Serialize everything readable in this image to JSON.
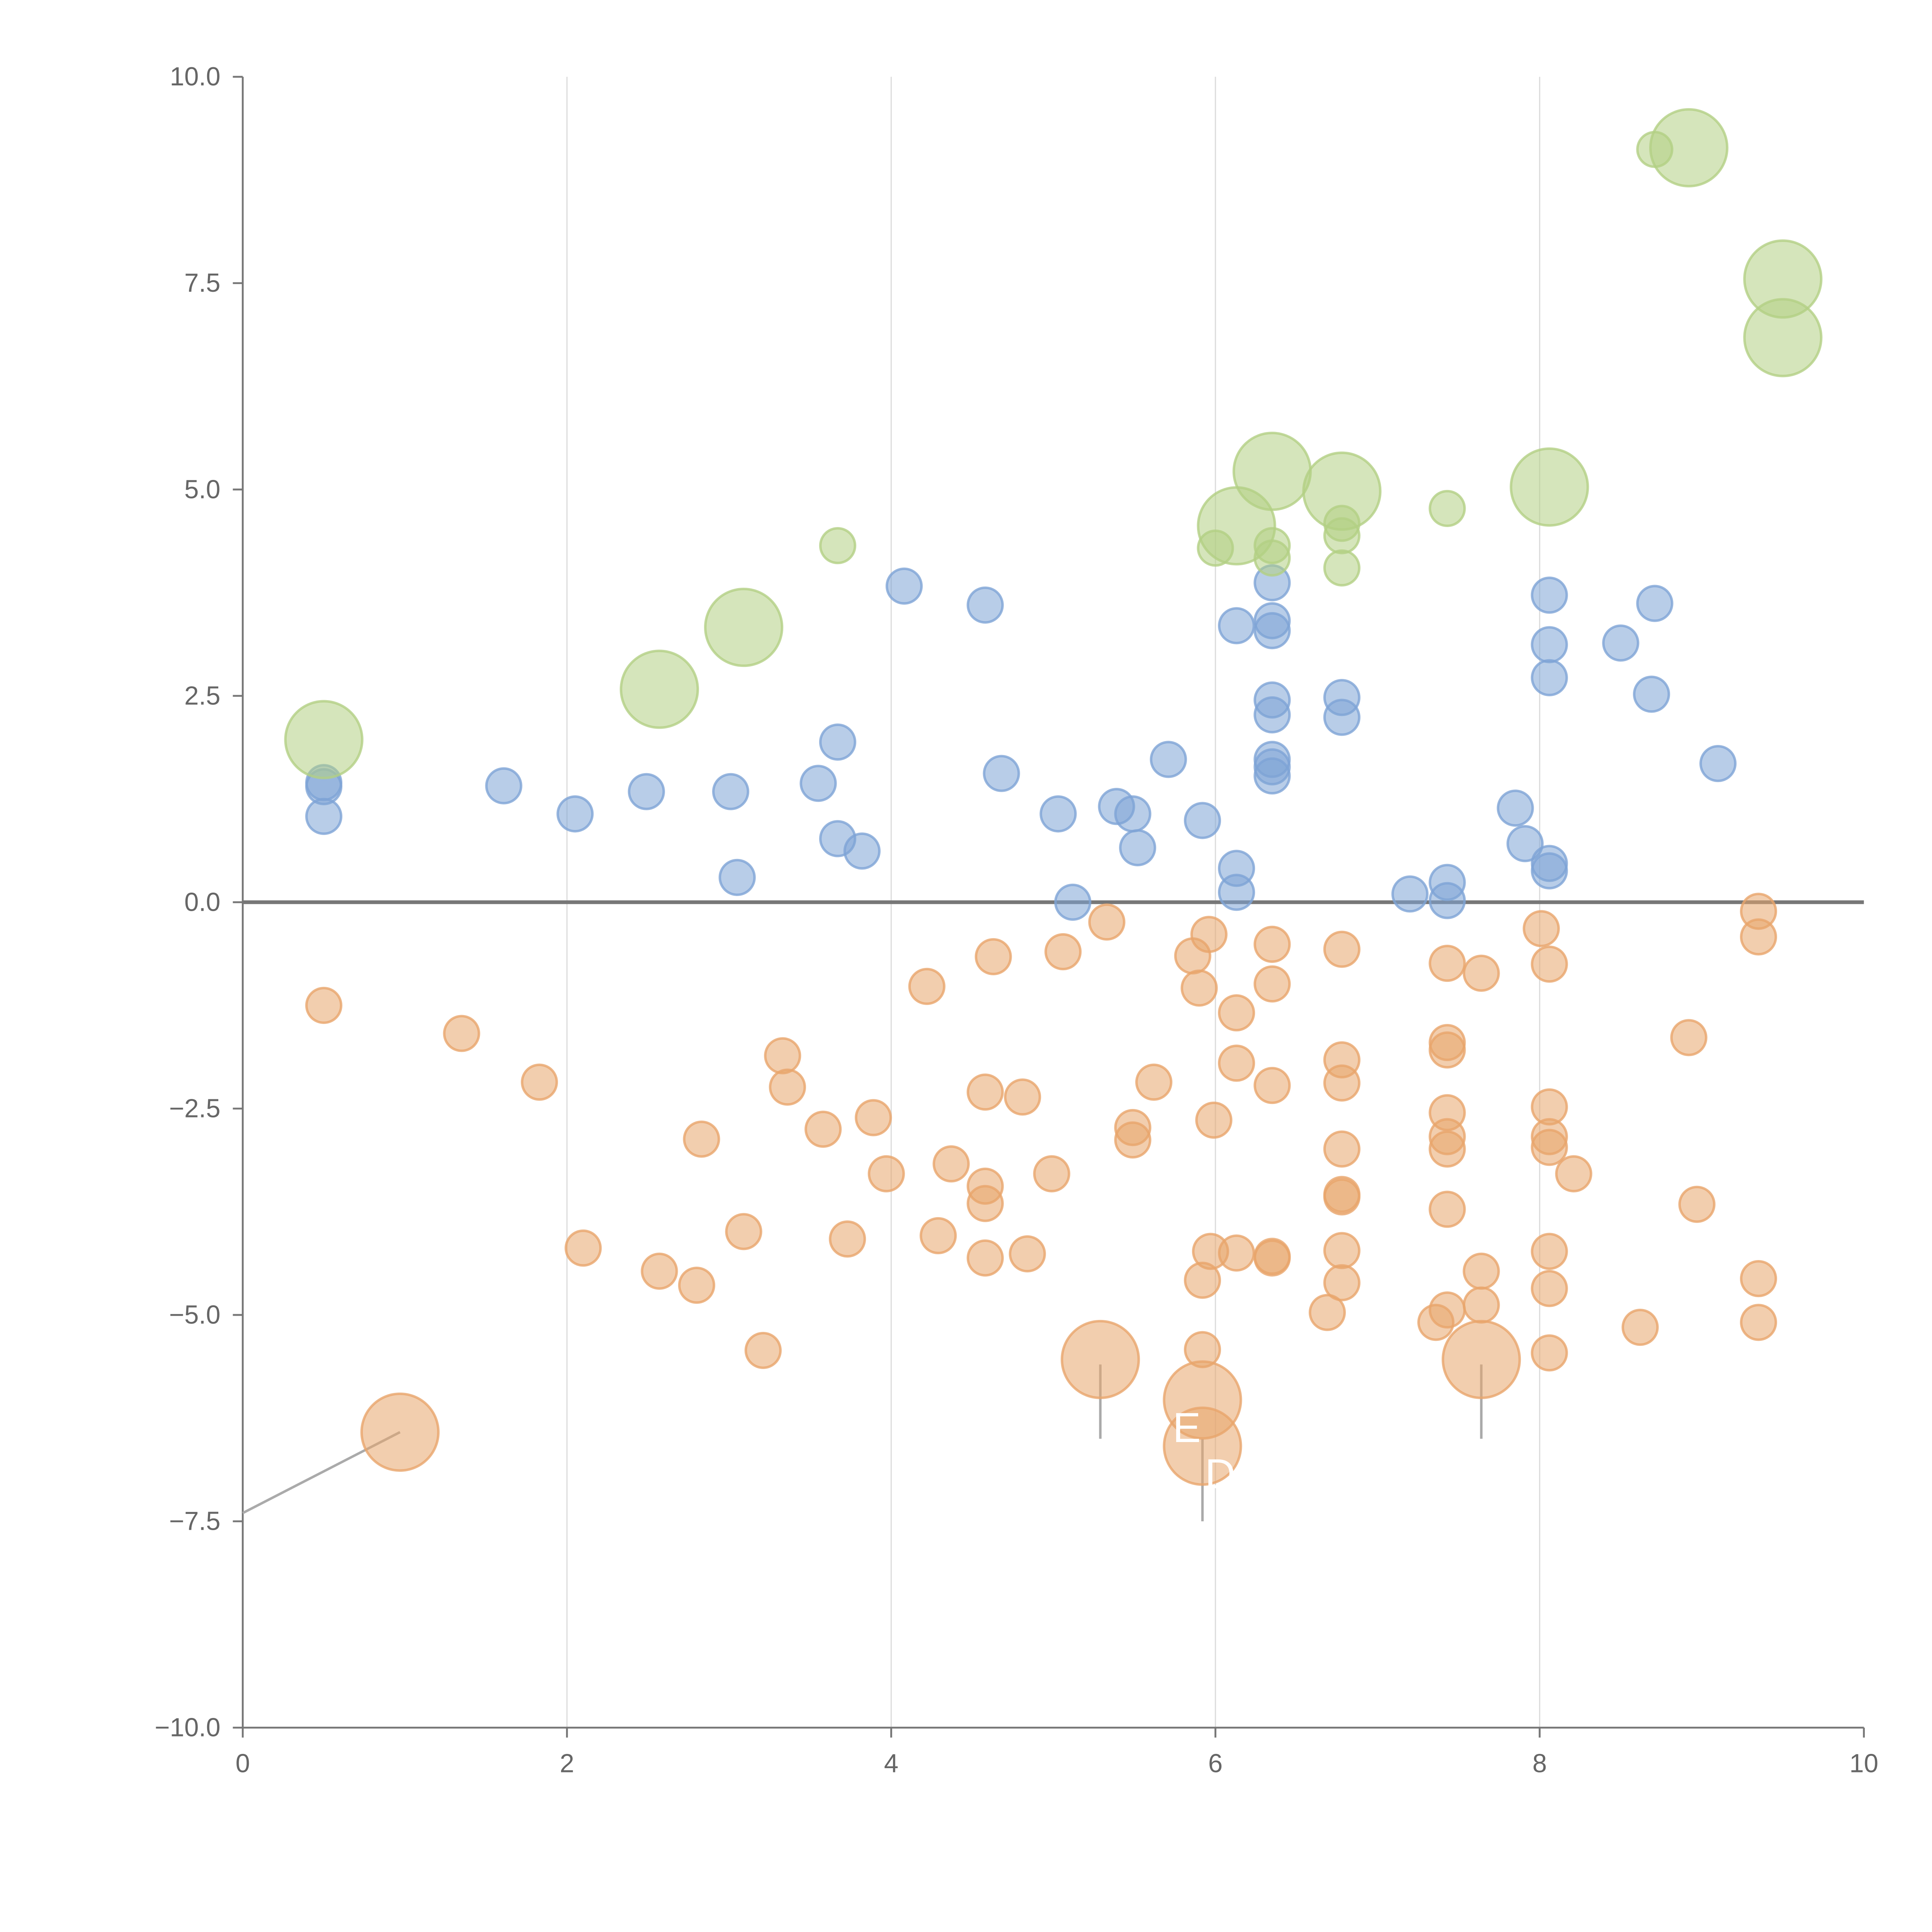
{
  "chart_data": {
    "type": "scatter",
    "title": "",
    "xlabel": "",
    "ylabel": "",
    "xlim": [
      0,
      10
    ],
    "ylim": [
      -10,
      10
    ],
    "x_ticks": [
      "0",
      "2",
      "4",
      "6",
      "8",
      "10"
    ],
    "y_ticks": [
      "10.0",
      "7.5",
      "5.0",
      "2.5",
      "0.0",
      "−2.5",
      "−5.0",
      "−7.5",
      "−10.0"
    ],
    "grid": "vertical",
    "reference_line_y": 0,
    "size_note": "points are [x, y, size]; size 1 = small, 2 = large",
    "series": [
      {
        "name": "blue",
        "color": "#7ea4d6",
        "points": [
          [
            0.5,
            1.4,
            1
          ],
          [
            0.5,
            1.45,
            1
          ],
          [
            0.5,
            1.04,
            1
          ],
          [
            1.61,
            1.41,
            1
          ],
          [
            2.05,
            1.07,
            1
          ],
          [
            2.49,
            1.34,
            1
          ],
          [
            3.01,
            1.34,
            1
          ],
          [
            3.05,
            0.3,
            1
          ],
          [
            3.55,
            1.44,
            1
          ],
          [
            3.67,
            1.94,
            1
          ],
          [
            3.67,
            0.77,
            1
          ],
          [
            3.82,
            0.62,
            1
          ],
          [
            4.08,
            3.83,
            1
          ],
          [
            4.58,
            3.6,
            1
          ],
          [
            4.68,
            1.56,
            1
          ],
          [
            5.03,
            1.07,
            1
          ],
          [
            5.12,
            0,
            1
          ],
          [
            5.39,
            1.16,
            1
          ],
          [
            5.49,
            1.07,
            1
          ],
          [
            5.52,
            0.66,
            1
          ],
          [
            5.71,
            1.73,
            1
          ],
          [
            5.92,
            0.99,
            1
          ],
          [
            6.13,
            3.35,
            1
          ],
          [
            6.13,
            0.41,
            1
          ],
          [
            6.13,
            0.12,
            1
          ],
          [
            6.35,
            3.87,
            1
          ],
          [
            6.35,
            3.41,
            1
          ],
          [
            6.35,
            3.29,
            1
          ],
          [
            6.35,
            2.45,
            1
          ],
          [
            6.35,
            2.27,
            1
          ],
          [
            6.35,
            1.73,
            1
          ],
          [
            6.35,
            1.64,
            1
          ],
          [
            6.35,
            1.53,
            1
          ],
          [
            6.78,
            2.48,
            1
          ],
          [
            6.78,
            2.24,
            1
          ],
          [
            7.2,
            0.1,
            1
          ],
          [
            7.43,
            0.24,
            1
          ],
          [
            7.43,
            0.02,
            1
          ],
          [
            7.85,
            1.14,
            1
          ],
          [
            7.91,
            0.71,
            1
          ],
          [
            8.06,
            3.72,
            1
          ],
          [
            8.06,
            3.12,
            1
          ],
          [
            8.06,
            2.72,
            1
          ],
          [
            8.06,
            0.47,
            1
          ],
          [
            8.06,
            0.38,
            1
          ],
          [
            8.5,
            3.14,
            1
          ],
          [
            8.71,
            3.62,
            1
          ],
          [
            8.69,
            2.52,
            1
          ],
          [
            9.1,
            1.68,
            1
          ]
        ]
      },
      {
        "name": "green",
        "color": "#b3cf84",
        "points": [
          [
            0.5,
            1.97,
            2
          ],
          [
            2.57,
            2.58,
            2
          ],
          [
            3.09,
            3.33,
            2
          ],
          [
            3.67,
            4.32,
            1
          ],
          [
            6.0,
            4.29,
            1
          ],
          [
            6.13,
            4.56,
            2
          ],
          [
            6.35,
            5.22,
            2
          ],
          [
            6.35,
            4.32,
            1
          ],
          [
            6.35,
            4.17,
            1
          ],
          [
            6.78,
            4.98,
            2
          ],
          [
            6.78,
            4.59,
            1
          ],
          [
            6.78,
            4.44,
            1
          ],
          [
            6.78,
            4.05,
            1
          ],
          [
            7.43,
            4.77,
            1
          ],
          [
            8.06,
            5.03,
            2
          ],
          [
            8.71,
            9.12,
            1
          ],
          [
            8.92,
            9.14,
            2
          ],
          [
            9.5,
            7.55,
            2
          ],
          [
            9.5,
            6.84,
            2
          ]
        ]
      },
      {
        "name": "orange",
        "color": "#e8a56c",
        "points": [
          [
            0.5,
            -1.25,
            1
          ],
          [
            1.35,
            -1.59,
            1
          ],
          [
            1.83,
            -2.18,
            1
          ],
          [
            2.1,
            -4.19,
            1
          ],
          [
            2.57,
            -4.47,
            1
          ],
          [
            2.8,
            -4.64,
            1
          ],
          [
            2.83,
            -2.87,
            1
          ],
          [
            3.09,
            -3.99,
            1
          ],
          [
            3.21,
            -5.43,
            1
          ],
          [
            3.33,
            -1.86,
            1
          ],
          [
            3.36,
            -2.24,
            1
          ],
          [
            3.58,
            -2.75,
            1
          ],
          [
            3.73,
            -4.08,
            1
          ],
          [
            3.89,
            -2.61,
            1
          ],
          [
            3.97,
            -3.29,
            1
          ],
          [
            4.22,
            -1.02,
            1
          ],
          [
            4.29,
            -4.04,
            1
          ],
          [
            4.37,
            -3.17,
            1
          ],
          [
            4.58,
            -2.3,
            1
          ],
          [
            4.58,
            -3.44,
            1
          ],
          [
            4.58,
            -3.65,
            1
          ],
          [
            4.58,
            -4.31,
            1
          ],
          [
            4.63,
            -0.66,
            1
          ],
          [
            4.81,
            -2.36,
            1
          ],
          [
            4.84,
            -4.26,
            1
          ],
          [
            4.99,
            -3.29,
            1
          ],
          [
            5.06,
            -0.6,
            1
          ],
          [
            5.33,
            -0.24,
            1
          ],
          [
            5.49,
            -2.73,
            1
          ],
          [
            5.49,
            -2.88,
            1
          ],
          [
            5.62,
            -2.18,
            1
          ],
          [
            5.86,
            -0.65,
            1
          ],
          [
            5.9,
            -1.04,
            1
          ],
          [
            5.96,
            -0.39,
            1
          ],
          [
            5.99,
            -2.64,
            1
          ],
          [
            5.97,
            -4.23,
            1
          ],
          [
            5.92,
            -4.58,
            1
          ],
          [
            5.92,
            -5.42,
            1
          ],
          [
            6.13,
            -1.34,
            1
          ],
          [
            6.13,
            -1.95,
            1
          ],
          [
            6.13,
            -4.25,
            1
          ],
          [
            6.35,
            -0.51,
            1
          ],
          [
            6.35,
            -0.99,
            1
          ],
          [
            6.35,
            -2.22,
            1
          ],
          [
            6.35,
            -4.29,
            1
          ],
          [
            6.35,
            -4.31,
            1
          ],
          [
            6.69,
            -4.97,
            1
          ],
          [
            6.78,
            -0.57,
            1
          ],
          [
            6.78,
            -1.91,
            1
          ],
          [
            6.78,
            -2.19,
            1
          ],
          [
            6.78,
            -2.99,
            1
          ],
          [
            6.78,
            -3.54,
            1
          ],
          [
            6.78,
            -3.57,
            1
          ],
          [
            6.78,
            -4.22,
            1
          ],
          [
            6.78,
            -4.61,
            1
          ],
          [
            7.36,
            -5.09,
            1
          ],
          [
            7.43,
            -0.74,
            1
          ],
          [
            7.43,
            -1.7,
            1
          ],
          [
            7.43,
            -1.79,
            1
          ],
          [
            7.43,
            -2.55,
            1
          ],
          [
            7.43,
            -2.84,
            1
          ],
          [
            7.43,
            -2.99,
            1
          ],
          [
            7.43,
            -3.72,
            1
          ],
          [
            7.43,
            -4.94,
            1
          ],
          [
            7.64,
            -0.86,
            1
          ],
          [
            7.64,
            -4.47,
            1
          ],
          [
            7.64,
            -4.88,
            1
          ],
          [
            8.01,
            -0.32,
            1
          ],
          [
            8.06,
            -0.75,
            1
          ],
          [
            8.06,
            -2.48,
            1
          ],
          [
            8.06,
            -2.84,
            1
          ],
          [
            8.06,
            -2.97,
            1
          ],
          [
            8.06,
            -4.23,
            1
          ],
          [
            8.06,
            -4.68,
            1
          ],
          [
            8.06,
            -5.46,
            1
          ],
          [
            8.21,
            -3.29,
            1
          ],
          [
            8.62,
            -5.15,
            1
          ],
          [
            8.92,
            -1.64,
            1
          ],
          [
            8.97,
            -3.66,
            1
          ],
          [
            9.35,
            -0.11,
            1
          ],
          [
            9.35,
            -0.42,
            1
          ],
          [
            9.35,
            -4.56,
            1
          ],
          [
            9.35,
            -5.09,
            1
          ],
          [
            0.97,
            -6.42,
            2
          ],
          [
            5.29,
            -5.54,
            2
          ],
          [
            5.92,
            -6.03,
            2
          ],
          [
            5.92,
            -6.59,
            2
          ],
          [
            7.64,
            -5.54,
            2
          ]
        ]
      }
    ],
    "annotations": [
      {
        "text": "E",
        "x": 5.92,
        "y": -6.03
      },
      {
        "text": "D",
        "x": 5.92,
        "y": -6.59
      }
    ]
  }
}
